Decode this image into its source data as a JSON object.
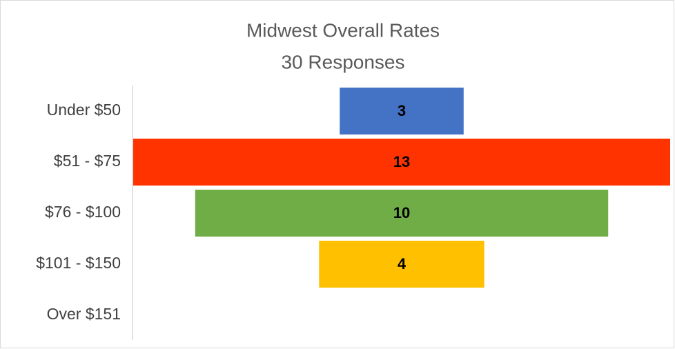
{
  "chart_data": {
    "type": "funnel",
    "title": [
      "Midwest Overall Rates",
      "30 Responses"
    ],
    "categories": [
      "Under $50",
      "$51 - $75",
      "$76 - $100",
      "$101 - $150",
      "Over $151"
    ],
    "values": [
      3,
      13,
      10,
      4,
      0
    ],
    "value_labels": [
      "3",
      "13",
      "10",
      "4",
      null
    ],
    "colors": [
      "#4472c4",
      "#ff3300",
      "#70ad47",
      "#ffc000",
      "#a5a5a5"
    ]
  }
}
